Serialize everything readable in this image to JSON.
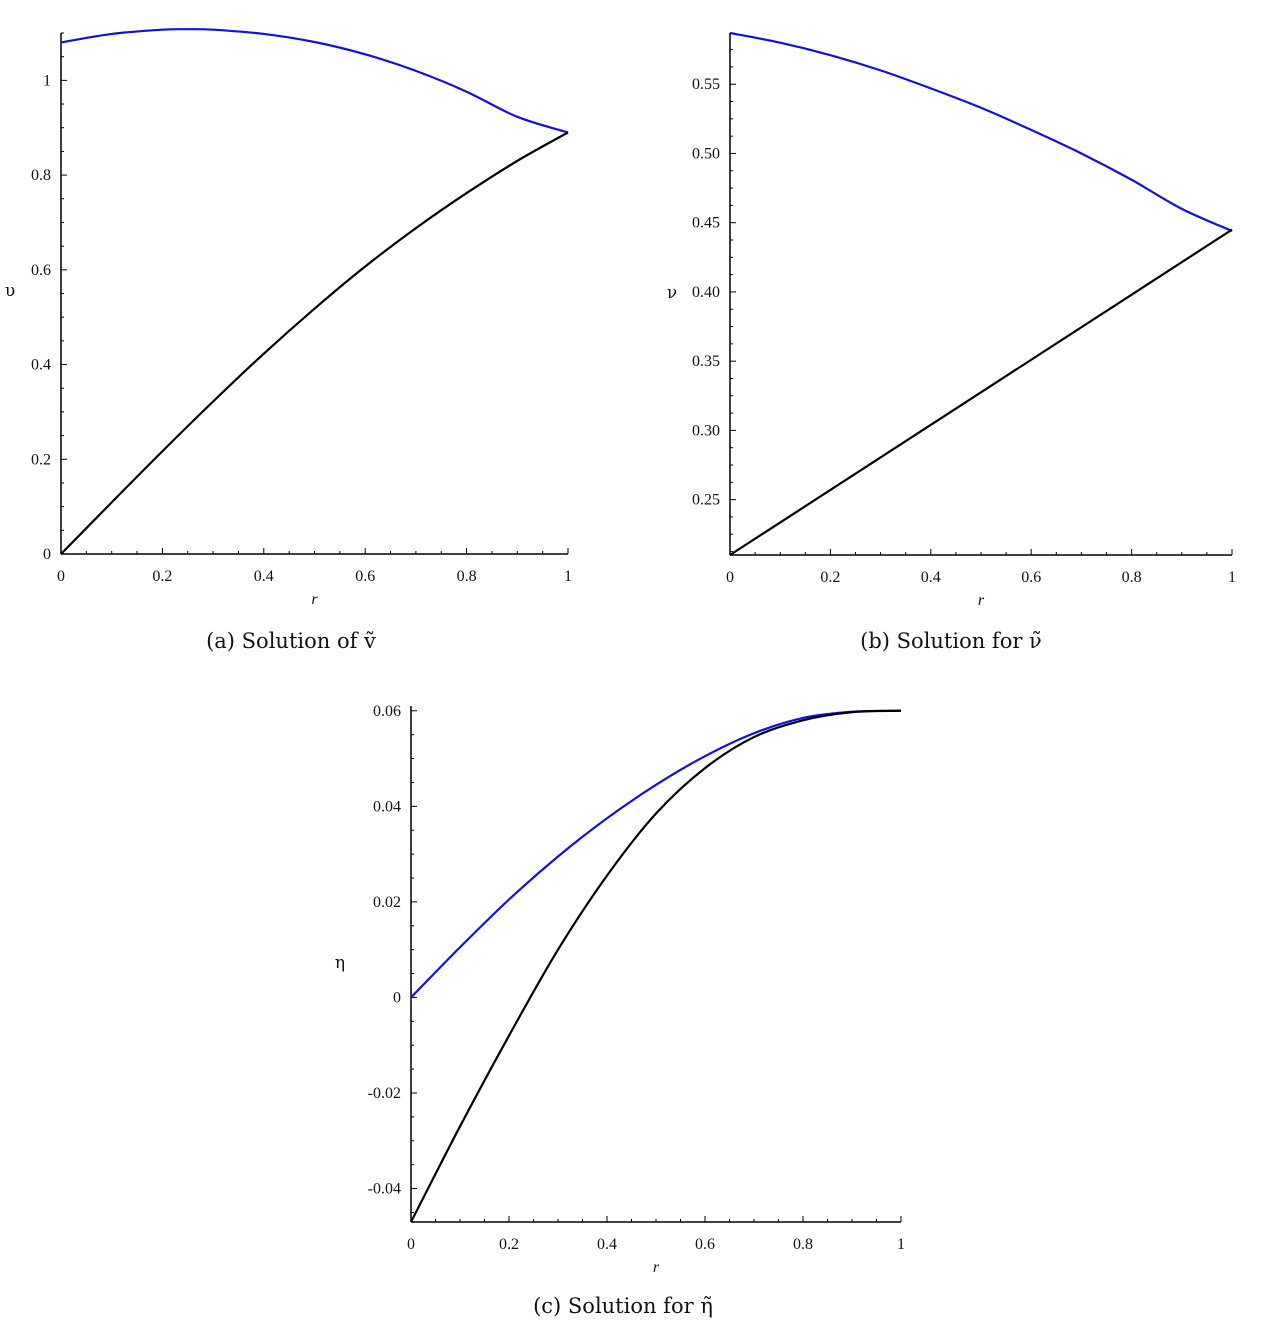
{
  "chart_data": [
    {
      "type": "line",
      "caption": "(a) Solution of ṽ",
      "xlabel": "r",
      "ylabel": "υ",
      "xlim": [
        0,
        1
      ],
      "ylim": [
        0,
        1.1
      ],
      "xticks": [
        0,
        0.2,
        0.4,
        0.6,
        0.8,
        1
      ],
      "xtick_labels": [
        "0",
        "0.2",
        "0.4",
        "0.6",
        "0.8",
        "1"
      ],
      "yticks": [
        0,
        0.2,
        0.4,
        0.6,
        0.8,
        1
      ],
      "ytick_labels": [
        "0",
        "0.2",
        "0.4",
        "0.6",
        "0.8",
        "1"
      ],
      "grid": false,
      "series": [
        {
          "color": "#1010e0",
          "x": [
            0,
            0.1,
            0.2,
            0.25,
            0.3,
            0.4,
            0.5,
            0.6,
            0.7,
            0.8,
            0.9,
            1.0
          ],
          "y": [
            1.08,
            1.098,
            1.107,
            1.108,
            1.107,
            1.098,
            1.081,
            1.055,
            1.02,
            0.976,
            0.923,
            0.89
          ]
        },
        {
          "color": "#000000",
          "x": [
            0,
            0.1,
            0.2,
            0.3,
            0.4,
            0.5,
            0.6,
            0.7,
            0.8,
            0.9,
            1.0
          ],
          "y": [
            0,
            0.109,
            0.217,
            0.322,
            0.423,
            0.518,
            0.607,
            0.688,
            0.762,
            0.83,
            0.89
          ]
        }
      ]
    },
    {
      "type": "line",
      "caption": "(b) Solution for ν̃",
      "xlabel": "r",
      "ylabel": "ν",
      "xlim": [
        0,
        1
      ],
      "ylim": [
        0.21,
        0.587
      ],
      "xticks": [
        0,
        0.2,
        0.4,
        0.6,
        0.8,
        1
      ],
      "xtick_labels": [
        "0",
        "0.2",
        "0.4",
        "0.6",
        "0.8",
        "1"
      ],
      "yticks": [
        0.25,
        0.3,
        0.35,
        0.4,
        0.45,
        0.5,
        0.55
      ],
      "ytick_labels": [
        "0.25",
        "0.30",
        "0.35",
        "0.40",
        "0.45",
        "0.50",
        "0.55"
      ],
      "grid": false,
      "series": [
        {
          "color": "#1010e0",
          "x": [
            0,
            0.1,
            0.2,
            0.3,
            0.4,
            0.5,
            0.6,
            0.7,
            0.8,
            0.9,
            1.0
          ],
          "y": [
            0.587,
            0.58,
            0.571,
            0.56,
            0.547,
            0.533,
            0.517,
            0.5,
            0.481,
            0.46,
            0.444
          ]
        },
        {
          "color": "#000000",
          "x": [
            0,
            1.0
          ],
          "y": [
            0.21,
            0.445
          ]
        }
      ]
    },
    {
      "type": "line",
      "caption": "(c) Solution for η̃",
      "xlabel": "r",
      "ylabel": "η",
      "xlim": [
        0,
        1
      ],
      "ylim": [
        -0.047,
        0.061
      ],
      "xticks": [
        0,
        0.2,
        0.4,
        0.6,
        0.8,
        1
      ],
      "xtick_labels": [
        "0",
        "0.2",
        "0.4",
        "0.6",
        "0.8",
        "1"
      ],
      "yticks": [
        -0.04,
        -0.02,
        0,
        0.02,
        0.04,
        0.06
      ],
      "ytick_labels": [
        "-0.04",
        "-0.02",
        "0",
        "0.02",
        "0.04",
        "0.06"
      ],
      "grid": false,
      "series": [
        {
          "color": "#1010e0",
          "x": [
            0,
            0.1,
            0.2,
            0.3,
            0.4,
            0.5,
            0.6,
            0.7,
            0.8,
            0.9,
            1.0
          ],
          "y": [
            0,
            0.0105,
            0.0205,
            0.0295,
            0.0375,
            0.0445,
            0.0505,
            0.0553,
            0.0585,
            0.0598,
            0.06
          ]
        },
        {
          "color": "#000000",
          "x": [
            0,
            0.1,
            0.2,
            0.3,
            0.4,
            0.5,
            0.6,
            0.7,
            0.8,
            0.9,
            1.0
          ],
          "y": [
            -0.047,
            -0.027,
            -0.008,
            0.01,
            0.0255,
            0.0385,
            0.048,
            0.0545,
            0.058,
            0.0597,
            0.06
          ]
        }
      ]
    }
  ]
}
